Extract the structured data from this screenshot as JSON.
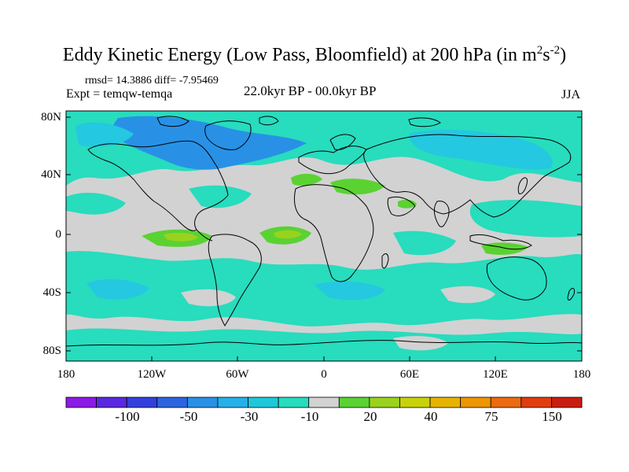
{
  "header": {
    "title_main": "Eddy Kinetic Energy (Low Pass, Bloomfield) at 200 hPa (in m",
    "title_sup1": "2",
    "title_mid": "s",
    "title_sup2": "-2",
    "title_end": ")",
    "stats": "rmsd= 14.3886 diff= -7.95469",
    "experiment": "Expt = temqw-temqa",
    "period": "22.0kyr BP - 00.0kyr BP",
    "season": "JJA"
  },
  "axes": {
    "y_labels": [
      "80N",
      "40N",
      "0",
      "40S",
      "80S"
    ],
    "x_labels": [
      "180",
      "120W",
      "60W",
      "0",
      "60E",
      "120E",
      "180"
    ]
  },
  "colorbar": {
    "colors": [
      "#8a1ae6",
      "#5a28e0",
      "#3240dc",
      "#2c64e0",
      "#2891e6",
      "#24b0e8",
      "#1ec8d8",
      "#28dcbe",
      "#d2d2d2",
      "#5ad232",
      "#9ad21e",
      "#c8d20a",
      "#e6b400",
      "#ee9600",
      "#ec6a10",
      "#e03c10",
      "#c81e10"
    ],
    "labels": [
      "-100",
      "-50",
      "-30",
      "-10",
      "20",
      "40",
      "75",
      "150"
    ]
  },
  "map_colors": {
    "neutral": "#d2d2d2",
    "teal": "#28dcbe",
    "cyan": "#24c8e0",
    "blue": "#2891e6",
    "green": "#5ad232",
    "yellow_green": "#9ad21e",
    "coast": "#000000"
  }
}
